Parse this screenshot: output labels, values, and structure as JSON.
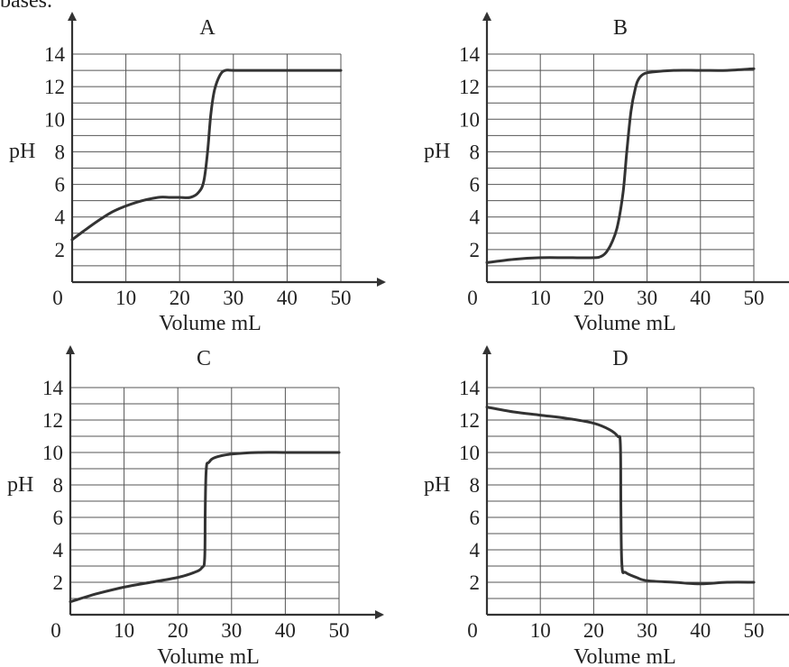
{
  "top_text": "bases.",
  "chart_data": [
    {
      "type": "line",
      "title": "A",
      "xlabel": "Volume mL",
      "ylabel": "pH",
      "xlim": [
        0,
        50
      ],
      "ylim": [
        0,
        14
      ],
      "x_ticks": [
        "0",
        "10",
        "20",
        "30",
        "40",
        "50"
      ],
      "y_ticks": [
        "2",
        "4",
        "6",
        "8",
        "10",
        "12",
        "14"
      ],
      "grid": true,
      "series": [
        {
          "x": [
            0,
            2,
            5,
            8,
            12,
            16,
            18,
            20,
            22,
            23.5,
            24.5,
            25.2,
            25.8,
            26.5,
            27.5,
            28.5,
            30,
            35,
            40,
            45,
            50
          ],
          "y": [
            2.6,
            3.1,
            3.8,
            4.4,
            4.9,
            5.2,
            5.2,
            5.2,
            5.2,
            5.5,
            6.2,
            8.0,
            10.3,
            11.8,
            12.7,
            13.0,
            13.0,
            13.0,
            13.0,
            13.0,
            13.0
          ]
        }
      ]
    },
    {
      "type": "line",
      "title": "B",
      "xlabel": "Volume mL",
      "ylabel": "pH",
      "xlim": [
        0,
        50
      ],
      "ylim": [
        0,
        14
      ],
      "x_ticks": [
        "0",
        "10",
        "20",
        "30",
        "40",
        "50"
      ],
      "y_ticks": [
        "2",
        "4",
        "6",
        "8",
        "10",
        "12",
        "14"
      ],
      "grid": true,
      "series": [
        {
          "x": [
            0,
            5,
            10,
            15,
            20,
            21.5,
            22.5,
            23.5,
            24.5,
            25.5,
            26.2,
            27,
            27.8,
            28.5,
            29.5,
            31,
            35,
            40,
            45,
            50
          ],
          "y": [
            1.2,
            1.4,
            1.5,
            1.5,
            1.5,
            1.6,
            1.9,
            2.5,
            3.5,
            5.5,
            8.0,
            10.5,
            11.9,
            12.5,
            12.8,
            12.9,
            13.0,
            13.0,
            13.0,
            13.1
          ]
        }
      ]
    },
    {
      "type": "line",
      "title": "C",
      "xlabel": "Volume mL",
      "ylabel": "pH",
      "xlim": [
        0,
        50
      ],
      "ylim": [
        0,
        14
      ],
      "x_ticks": [
        "0",
        "10",
        "20",
        "30",
        "40",
        "50"
      ],
      "y_ticks": [
        "2",
        "4",
        "6",
        "8",
        "10",
        "12",
        "14"
      ],
      "grid": true,
      "series": [
        {
          "x": [
            0,
            5,
            10,
            15,
            20,
            23,
            24.5,
            25,
            25.1,
            25.3,
            25.8,
            27,
            30,
            35,
            40,
            45,
            50
          ],
          "y": [
            0.8,
            1.3,
            1.7,
            2.0,
            2.3,
            2.6,
            2.9,
            3.5,
            6.5,
            9.0,
            9.4,
            9.7,
            9.9,
            10.0,
            10.0,
            10.0,
            10.0
          ]
        }
      ]
    },
    {
      "type": "line",
      "title": "D",
      "xlabel": "Volume mL",
      "ylabel": "pH",
      "xlim": [
        0,
        50
      ],
      "ylim": [
        0,
        14
      ],
      "x_ticks": [
        "0",
        "10",
        "20",
        "30",
        "40",
        "50"
      ],
      "y_ticks": [
        "2",
        "4",
        "6",
        "8",
        "10",
        "12",
        "14"
      ],
      "grid": true,
      "series": [
        {
          "x": [
            0,
            5,
            10,
            15,
            20,
            23,
            24.5,
            25,
            25.1,
            25.3,
            26,
            28,
            30,
            35,
            40,
            45,
            50
          ],
          "y": [
            12.8,
            12.5,
            12.3,
            12.1,
            11.8,
            11.4,
            11.0,
            10.5,
            6.5,
            3.0,
            2.6,
            2.3,
            2.1,
            2.0,
            1.9,
            2.0,
            2.0
          ]
        }
      ]
    }
  ]
}
